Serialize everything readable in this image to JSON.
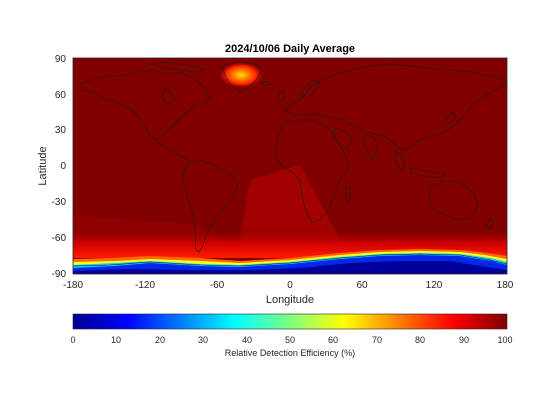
{
  "figure": {
    "title": "2024/10/06 Daily Average",
    "xlabel": "Longitude",
    "ylabel": "Latitude",
    "xticks": [
      "-180",
      "-120",
      "-60",
      "0",
      "60",
      "120",
      "180"
    ],
    "yticks": [
      "90",
      "60",
      "30",
      "0",
      "-30",
      "-60",
      "-90"
    ],
    "colorbar": {
      "label": "Relative Detection Efficiency (%)",
      "ticks": [
        "0",
        "10",
        "20",
        "30",
        "40",
        "50",
        "60",
        "70",
        "80",
        "90",
        "100"
      ],
      "colormap": "jet",
      "range": [
        0,
        100
      ]
    },
    "map": {
      "projection": "equirectangular",
      "lon_range": [
        -180,
        180
      ],
      "lat_range": [
        -90,
        90
      ],
      "background_value_percent": 100,
      "greenland_hotspot_value_percent": 85,
      "antarctic_low_value_percent": 5,
      "colors": {
        "dark_red": "#800000",
        "mid_red": "#b40000",
        "red": "#e00000",
        "orange": "#ff8000",
        "yellow": "#ffff00",
        "cyan": "#00c0ff",
        "blue": "#0020e0",
        "dark_blue": "#000090",
        "coastline": "#1a1a1a"
      }
    }
  }
}
